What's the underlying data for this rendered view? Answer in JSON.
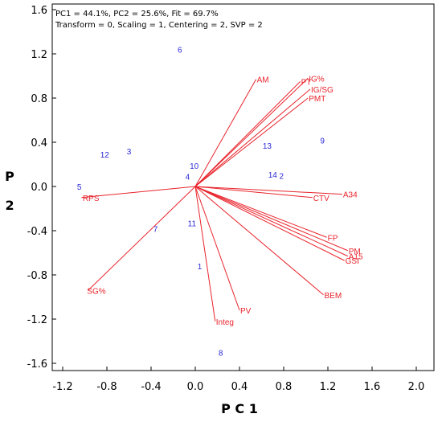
{
  "chart_data": {
    "type": "scatter",
    "info_line1": "PC1 = 44.1%, PC2 = 25.6%, Fit = 69.7%",
    "info_line2": "Transform = 0, Scaling = 1, Centering = 2, SVP = 2",
    "xlabel": "P C 1",
    "ylabel": "P C 2",
    "xlim": [
      -1.3,
      2.1
    ],
    "ylim": [
      -1.7,
      1.65
    ],
    "x_ticks": [
      -1.2,
      -0.8,
      -0.4,
      0.0,
      0.4,
      0.8,
      1.2,
      1.6,
      2.0
    ],
    "x_tick_labels": [
      "-1.2",
      "-0.8",
      "-0.4",
      "0.0",
      "0.4",
      "0.8",
      "1.2",
      "1.6",
      "2.0"
    ],
    "y_ticks": [
      1.6,
      1.2,
      0.8,
      0.4,
      0.0,
      -0.4,
      -0.8,
      -1.2,
      -1.6
    ],
    "y_tick_labels": [
      "1.6",
      "1.2",
      "0.8",
      "0.4",
      "0.0",
      "-0.4",
      "-0.8",
      "-1.2",
      "-1.6"
    ],
    "vector_color": "#e8242c",
    "point_color": "#2a2ad6",
    "vectors": [
      {
        "label": "AM",
        "x": 0.55,
        "y": 0.97
      },
      {
        "label": "PT",
        "x": 0.95,
        "y": 0.95
      },
      {
        "label": "IG%",
        "x": 1.02,
        "y": 0.98
      },
      {
        "label": "IG/SG",
        "x": 1.04,
        "y": 0.88
      },
      {
        "label": "PMT",
        "x": 1.02,
        "y": 0.8
      },
      {
        "label": "A34",
        "x": 1.33,
        "y": -0.07
      },
      {
        "label": "CTV",
        "x": 1.06,
        "y": -0.1
      },
      {
        "label": "FP",
        "x": 1.19,
        "y": -0.46
      },
      {
        "label": "PM",
        "x": 1.38,
        "y": -0.58
      },
      {
        "label": "A15",
        "x": 1.38,
        "y": -0.63
      },
      {
        "label": "GSI",
        "x": 1.35,
        "y": -0.67
      },
      {
        "label": "BEM",
        "x": 1.16,
        "y": -0.98
      },
      {
        "label": "PV",
        "x": 0.4,
        "y": -1.12
      },
      {
        "label": "Integ",
        "x": 0.18,
        "y": -1.22
      },
      {
        "label": "RPS",
        "x": -1.03,
        "y": -0.1
      },
      {
        "label": "SG%",
        "x": -0.97,
        "y": -0.94
      }
    ],
    "points": [
      {
        "label": "1",
        "x": 0.04,
        "y": -0.72
      },
      {
        "label": "2",
        "x": 0.78,
        "y": 0.1
      },
      {
        "label": "3",
        "x": -0.6,
        "y": 0.32
      },
      {
        "label": "4",
        "x": -0.07,
        "y": 0.09
      },
      {
        "label": "5",
        "x": -1.05,
        "y": 0.0
      },
      {
        "label": "6",
        "x": -0.14,
        "y": 1.24
      },
      {
        "label": "7",
        "x": -0.36,
        "y": -0.38
      },
      {
        "label": "8",
        "x": 0.23,
        "y": -1.5
      },
      {
        "label": "9",
        "x": 1.15,
        "y": 0.42
      },
      {
        "label": "10",
        "x": -0.01,
        "y": 0.19
      },
      {
        "label": "11",
        "x": -0.03,
        "y": -0.33
      },
      {
        "label": "12",
        "x": -0.82,
        "y": 0.29
      },
      {
        "label": "13",
        "x": 0.65,
        "y": 0.37
      },
      {
        "label": "14",
        "x": 0.7,
        "y": 0.11
      }
    ]
  }
}
